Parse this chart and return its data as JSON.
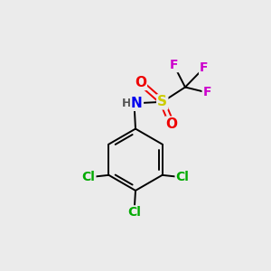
{
  "background_color": "#ebebeb",
  "figsize": [
    3.0,
    3.0
  ],
  "dpi": 100,
  "atom_colors": {
    "C": "#000000",
    "H": "#808080",
    "N": "#0000ee",
    "O": "#ee0000",
    "S": "#cccc00",
    "F": "#cc00cc",
    "Cl": "#00aa00"
  },
  "bond_color": "#000000",
  "bond_width": 1.4,
  "font_size_atoms": 10,
  "font_size_small": 9
}
